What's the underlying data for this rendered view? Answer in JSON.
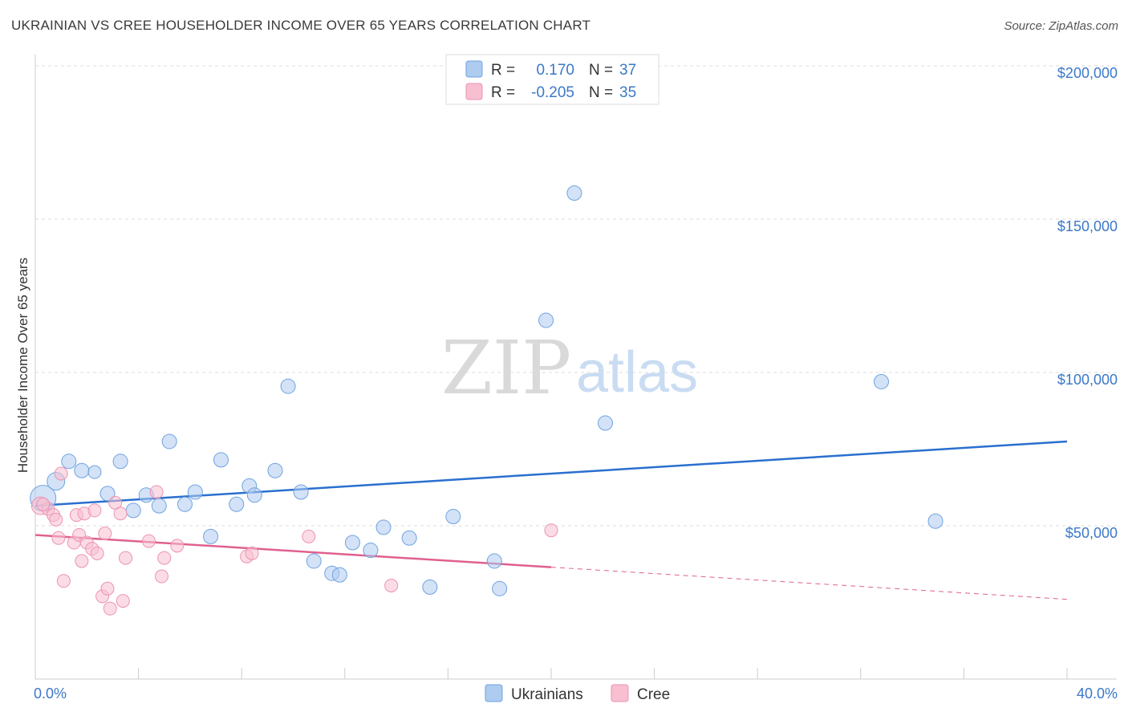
{
  "header": {
    "title": "UKRAINIAN VS CREE HOUSEHOLDER INCOME OVER 65 YEARS CORRELATION CHART",
    "source": "Source: ZipAtlas.com"
  },
  "watermark": {
    "zip": "ZIP",
    "atlas": "atlas"
  },
  "legend_top": {
    "rows": [
      {
        "r_label": "R =",
        "r_value": "0.170",
        "n_label": "N =",
        "n_value": "37",
        "color": "#aecbf0"
      },
      {
        "r_label": "R =",
        "r_value": "-0.205",
        "n_label": "N =",
        "n_value": "35",
        "color": "#f7bfd0"
      }
    ]
  },
  "legend_bottom": {
    "items": [
      "Ukrainians",
      "Cree"
    ]
  },
  "chart_data": {
    "type": "scatter",
    "title": "UKRAINIAN VS CREE HOUSEHOLDER INCOME OVER 65 YEARS CORRELATION CHART",
    "xlabel": "",
    "ylabel": "Householder Income Over 65 years",
    "xlim": [
      0,
      40
    ],
    "ylim": [
      0,
      205000
    ],
    "x_tick_labels": [
      "0.0%",
      "40.0%"
    ],
    "y_ticks": [
      50000,
      100000,
      150000,
      200000
    ],
    "y_tick_labels": [
      "$50,000",
      "$100,000",
      "$150,000",
      "$200,000"
    ],
    "grid": true,
    "series": [
      {
        "name": "Ukrainians",
        "color": "#6fa3e0",
        "fill": "#aecbf0",
        "trend_color": "#2a6fcf",
        "trend": {
          "x0": 0,
          "y0": 56500,
          "x1": 40,
          "y1": 77500,
          "dashed_from": null
        },
        "points": [
          [
            0.3,
            59000,
            16
          ],
          [
            0.8,
            64500,
            11
          ],
          [
            1.3,
            71000,
            9
          ],
          [
            1.8,
            68000,
            9
          ],
          [
            2.3,
            67500,
            8
          ],
          [
            2.8,
            60500,
            9
          ],
          [
            3.3,
            71000,
            9
          ],
          [
            3.8,
            55000,
            9
          ],
          [
            4.3,
            60000,
            9
          ],
          [
            4.8,
            56500,
            9
          ],
          [
            5.2,
            77500,
            9
          ],
          [
            5.8,
            57000,
            9
          ],
          [
            6.2,
            61000,
            9
          ],
          [
            6.8,
            46500,
            9
          ],
          [
            7.2,
            71500,
            9
          ],
          [
            7.8,
            57000,
            9
          ],
          [
            8.3,
            63000,
            9
          ],
          [
            8.5,
            60000,
            9
          ],
          [
            9.3,
            68000,
            9
          ],
          [
            9.8,
            95500,
            9
          ],
          [
            10.3,
            61000,
            9
          ],
          [
            10.8,
            38500,
            9
          ],
          [
            11.5,
            34500,
            9
          ],
          [
            11.8,
            34000,
            9
          ],
          [
            12.3,
            44500,
            9
          ],
          [
            13.0,
            42000,
            9
          ],
          [
            13.5,
            49500,
            9
          ],
          [
            14.5,
            46000,
            9
          ],
          [
            15.3,
            30000,
            9
          ],
          [
            16.2,
            53000,
            9
          ],
          [
            17.8,
            38500,
            9
          ],
          [
            18.0,
            29500,
            9
          ],
          [
            19.8,
            117000,
            9
          ],
          [
            20.9,
            158500,
            9
          ],
          [
            22.1,
            83500,
            9
          ],
          [
            32.8,
            97000,
            9
          ],
          [
            34.9,
            51500,
            9
          ]
        ]
      },
      {
        "name": "Cree",
        "color": "#ec93b3",
        "fill": "#f7bfd0",
        "trend_color": "#e0608f",
        "trend": {
          "x0": 0,
          "y0": 47000,
          "x1": 40,
          "y1": 26000,
          "dashed_from": 20
        },
        "points": [
          [
            0.2,
            56500,
            11
          ],
          [
            0.5,
            55500,
            8
          ],
          [
            0.7,
            53500,
            8
          ],
          [
            0.8,
            52000,
            8
          ],
          [
            0.9,
            46000,
            8
          ],
          [
            1.0,
            67000,
            8
          ],
          [
            1.1,
            32000,
            8
          ],
          [
            1.5,
            44500,
            8
          ],
          [
            1.6,
            53500,
            8
          ],
          [
            1.7,
            47000,
            8
          ],
          [
            1.8,
            38500,
            8
          ],
          [
            1.9,
            54000,
            8
          ],
          [
            2.0,
            44500,
            8
          ],
          [
            2.2,
            42500,
            8
          ],
          [
            2.3,
            55000,
            8
          ],
          [
            2.4,
            41000,
            8
          ],
          [
            2.6,
            27000,
            8
          ],
          [
            2.7,
            47500,
            8
          ],
          [
            2.8,
            29500,
            8
          ],
          [
            2.9,
            23000,
            8
          ],
          [
            3.1,
            57500,
            8
          ],
          [
            3.3,
            54000,
            8
          ],
          [
            3.4,
            25500,
            8
          ],
          [
            3.5,
            39500,
            8
          ],
          [
            4.4,
            45000,
            8
          ],
          [
            4.7,
            61000,
            8
          ],
          [
            4.9,
            33500,
            8
          ],
          [
            5.0,
            39500,
            8
          ],
          [
            5.5,
            43500,
            8
          ],
          [
            8.2,
            40000,
            8
          ],
          [
            8.4,
            41000,
            8
          ],
          [
            10.6,
            46500,
            8
          ],
          [
            13.8,
            30500,
            8
          ],
          [
            20.0,
            48500,
            8
          ],
          [
            0.3,
            57000,
            8
          ]
        ]
      }
    ]
  }
}
